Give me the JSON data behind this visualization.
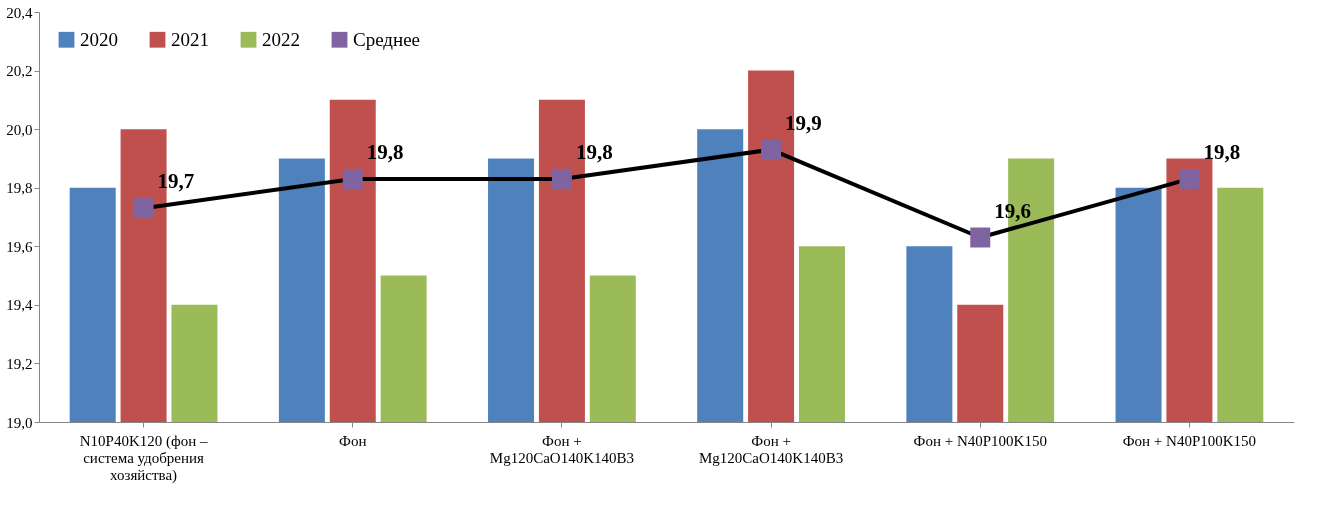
{
  "chart_data": {
    "type": "bar",
    "categories": [
      "N10P40K120 (фон – система удобрения хозяйства)",
      "Фон",
      "Фон + Mg120CaO140K140B3",
      "Фон + Mg120CaO140K140B3",
      "Фон + N40P100K150",
      "Фон + N40P100K150"
    ],
    "series": [
      {
        "name": "2020",
        "color": "#4f81bd",
        "values": [
          19.8,
          19.9,
          19.9,
          20.0,
          19.6,
          19.8
        ]
      },
      {
        "name": "2021",
        "color": "#c0504d",
        "values": [
          20.0,
          20.1,
          20.1,
          20.2,
          19.4,
          19.9
        ]
      },
      {
        "name": "2022",
        "color": "#9bbb59",
        "values": [
          19.4,
          19.5,
          19.5,
          19.6,
          19.9,
          19.8
        ]
      },
      {
        "name": "Среднее",
        "type": "line",
        "color": "#8064a2",
        "marker": "square",
        "values": [
          19.73,
          19.83,
          19.83,
          19.93,
          19.63,
          19.83
        ],
        "value_labels": [
          "19,7",
          "19,8",
          "19,8",
          "19,9",
          "19,6",
          "19,8"
        ]
      }
    ],
    "ylim": [
      19.0,
      20.4
    ],
    "yticks": [
      {
        "value": 19.0,
        "label": "19,0"
      },
      {
        "value": 19.2,
        "label": "19,2"
      },
      {
        "value": 19.4,
        "label": "19,4"
      },
      {
        "value": 19.6,
        "label": "19,6"
      },
      {
        "value": 19.8,
        "label": "19,8"
      },
      {
        "value": 20.0,
        "label": "20,0"
      },
      {
        "value": 20.2,
        "label": "20,2"
      },
      {
        "value": 20.4,
        "label": "20,4"
      }
    ],
    "grid": false,
    "legend": "top left"
  }
}
